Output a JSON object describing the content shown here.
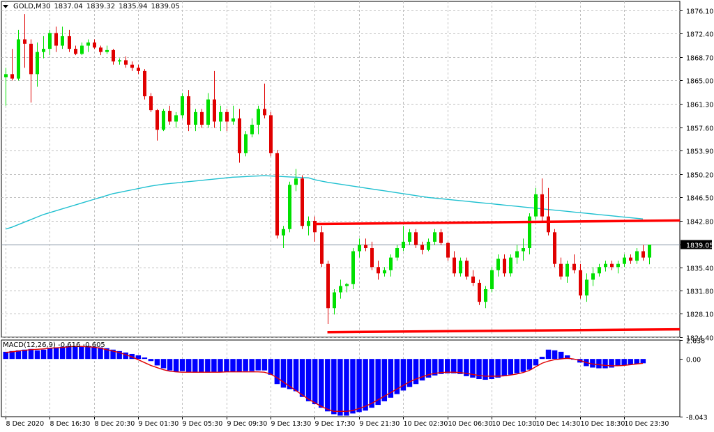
{
  "window": {
    "symbol": "GOLD,M30",
    "ohlc": [
      "1837.04",
      "1839.32",
      "1835.94",
      "1839.05"
    ],
    "current_price_label": "1839.05",
    "macd_label": "MACD(12,26,9)",
    "macd_values": "-0.616 -0.605"
  },
  "colors": {
    "bull": "#00e000",
    "bear": "#e00000",
    "ma": "#20c0d0",
    "trend": "#ff0000",
    "histogram": "#0000ff",
    "signal": "#e00000",
    "grid": "#c0c0c0"
  },
  "chart_data": [
    {
      "type": "candlestick",
      "title": "GOLD,M30",
      "ylim": [
        1824.4,
        1877.5
      ],
      "yticks": [
        "1876.10",
        "1872.40",
        "1868.70",
        "1865.00",
        "1861.30",
        "1857.60",
        "1853.90",
        "1850.20",
        "1846.50",
        "1842.80",
        "1839.05",
        "1835.40",
        "1831.80",
        "1828.10",
        "1824.40"
      ],
      "xticks": [
        "8 Dec 2020",
        "8 Dec 16:30",
        "8 Dec 20:30",
        "9 Dec 01:30",
        "9 Dec 05:30",
        "9 Dec 09:30",
        "9 Dec 13:30",
        "9 Dec 17:30",
        "9 Dec 21:30",
        "10 Dec 02:30",
        "10 Dec 06:30",
        "10 Dec 10:30",
        "10 Dec 14:30",
        "10 Dec 18:30",
        "10 Dec 23:30"
      ],
      "ohlc": [
        [
          1865.5,
          1867.0,
          1861.0,
          1866.0
        ],
        [
          1866.0,
          1870.0,
          1865.0,
          1865.3
        ],
        [
          1865.3,
          1873.0,
          1865.0,
          1871.5
        ],
        [
          1871.5,
          1875.5,
          1867.0,
          1870.8
        ],
        [
          1870.8,
          1871.5,
          1861.5,
          1866.0
        ],
        [
          1866.0,
          1871.0,
          1864.0,
          1869.5
        ],
        [
          1869.5,
          1872.0,
          1868.5,
          1870.0
        ],
        [
          1870.0,
          1873.0,
          1869.0,
          1872.5
        ],
        [
          1872.5,
          1873.5,
          1869.5,
          1870.5
        ],
        [
          1870.5,
          1873.5,
          1870.0,
          1872.0
        ],
        [
          1872.0,
          1873.0,
          1869.5,
          1870.0
        ],
        [
          1870.0,
          1870.5,
          1869.0,
          1869.2
        ],
        [
          1869.2,
          1871.0,
          1869.0,
          1870.5
        ],
        [
          1870.5,
          1871.5,
          1869.5,
          1871.0
        ],
        [
          1871.0,
          1871.5,
          1870.0,
          1870.2
        ],
        [
          1870.2,
          1870.5,
          1869.0,
          1869.5
        ],
        [
          1869.5,
          1870.5,
          1869.2,
          1869.8
        ],
        [
          1869.8,
          1870.0,
          1867.5,
          1868.0
        ],
        [
          1868.0,
          1868.5,
          1867.5,
          1868.2
        ],
        [
          1868.2,
          1868.8,
          1867.0,
          1867.5
        ],
        [
          1867.5,
          1868.0,
          1866.5,
          1867.0
        ],
        [
          1867.0,
          1867.5,
          1866.0,
          1866.5
        ],
        [
          1866.5,
          1866.8,
          1862.0,
          1862.5
        ],
        [
          1862.5,
          1863.0,
          1860.0,
          1860.3
        ],
        [
          1860.3,
          1860.5,
          1855.5,
          1857.2
        ],
        [
          1857.2,
          1860.5,
          1857.0,
          1860.2
        ],
        [
          1860.2,
          1861.0,
          1858.0,
          1858.5
        ],
        [
          1858.5,
          1860.0,
          1857.5,
          1859.5
        ],
        [
          1859.5,
          1863.0,
          1859.0,
          1862.5
        ],
        [
          1862.5,
          1863.5,
          1857.0,
          1858.0
        ],
        [
          1858.0,
          1860.5,
          1857.0,
          1860.0
        ],
        [
          1860.0,
          1860.5,
          1857.5,
          1858.0
        ],
        [
          1858.0,
          1863.0,
          1857.5,
          1862.0
        ],
        [
          1862.0,
          1866.5,
          1857.5,
          1858.5
        ],
        [
          1858.5,
          1861.0,
          1857.0,
          1860.0
        ],
        [
          1860.0,
          1860.5,
          1857.0,
          1858.5
        ],
        [
          1858.5,
          1861.0,
          1858.0,
          1859.0
        ],
        [
          1859.0,
          1860.5,
          1852.0,
          1853.5
        ],
        [
          1853.5,
          1857.0,
          1853.0,
          1856.5
        ],
        [
          1856.5,
          1859.0,
          1856.0,
          1858.0
        ],
        [
          1858.0,
          1861.0,
          1856.5,
          1860.5
        ],
        [
          1860.5,
          1864.5,
          1859.0,
          1859.5
        ],
        [
          1859.5,
          1860.0,
          1853.0,
          1853.5
        ],
        [
          1853.5,
          1854.0,
          1840.0,
          1840.5
        ],
        [
          1840.5,
          1842.0,
          1838.5,
          1841.5
        ],
        [
          1841.5,
          1849.0,
          1841.0,
          1848.5
        ],
        [
          1848.5,
          1851.0,
          1847.5,
          1849.5
        ],
        [
          1849.5,
          1850.0,
          1841.5,
          1842.0
        ],
        [
          1842.0,
          1843.5,
          1840.5,
          1842.8
        ],
        [
          1842.8,
          1843.5,
          1839.5,
          1841.0
        ],
        [
          1841.0,
          1842.0,
          1835.5,
          1836.0
        ],
        [
          1836.0,
          1836.5,
          1826.5,
          1829.0
        ],
        [
          1829.0,
          1832.0,
          1828.0,
          1831.5
        ],
        [
          1831.5,
          1833.5,
          1830.5,
          1832.5
        ],
        [
          1832.5,
          1833.0,
          1831.5,
          1832.8
        ],
        [
          1832.8,
          1838.5,
          1832.0,
          1838.0
        ],
        [
          1838.0,
          1840.0,
          1837.0,
          1839.0
        ],
        [
          1839.0,
          1840.0,
          1838.0,
          1838.5
        ],
        [
          1838.5,
          1839.5,
          1835.0,
          1835.5
        ],
        [
          1835.5,
          1836.5,
          1833.5,
          1834.5
        ],
        [
          1834.5,
          1835.5,
          1834.0,
          1835.0
        ],
        [
          1835.0,
          1837.5,
          1834.0,
          1837.0
        ],
        [
          1837.0,
          1839.0,
          1836.5,
          1838.5
        ],
        [
          1838.5,
          1842.0,
          1838.0,
          1839.5
        ],
        [
          1839.5,
          1841.5,
          1839.0,
          1841.0
        ],
        [
          1841.0,
          1841.5,
          1838.5,
          1839.0
        ],
        [
          1839.0,
          1839.5,
          1837.5,
          1838.2
        ],
        [
          1838.2,
          1840.0,
          1838.0,
          1839.5
        ],
        [
          1839.5,
          1841.5,
          1839.0,
          1841.0
        ],
        [
          1841.0,
          1841.5,
          1839.0,
          1839.3
        ],
        [
          1839.3,
          1839.5,
          1836.5,
          1837.0
        ],
        [
          1837.0,
          1838.0,
          1834.0,
          1834.5
        ],
        [
          1834.5,
          1837.0,
          1834.0,
          1836.5
        ],
        [
          1836.5,
          1837.0,
          1833.5,
          1834.0
        ],
        [
          1834.0,
          1835.0,
          1832.5,
          1833.0
        ],
        [
          1833.0,
          1833.5,
          1829.5,
          1830.0
        ],
        [
          1830.0,
          1832.5,
          1829.0,
          1832.0
        ],
        [
          1832.0,
          1835.5,
          1831.5,
          1835.0
        ],
        [
          1835.0,
          1837.5,
          1834.0,
          1836.8
        ],
        [
          1836.8,
          1837.5,
          1834.0,
          1834.5
        ],
        [
          1834.5,
          1837.5,
          1834.0,
          1837.0
        ],
        [
          1837.0,
          1839.0,
          1836.0,
          1838.0
        ],
        [
          1838.0,
          1840.0,
          1836.5,
          1838.5
        ],
        [
          1838.5,
          1844.0,
          1837.5,
          1843.5
        ],
        [
          1843.5,
          1848.0,
          1843.0,
          1847.0
        ],
        [
          1847.0,
          1849.5,
          1842.5,
          1843.5
        ],
        [
          1843.5,
          1848.0,
          1840.5,
          1841.0
        ],
        [
          1841.0,
          1841.5,
          1835.5,
          1836.0
        ],
        [
          1836.0,
          1837.0,
          1833.5,
          1834.0
        ],
        [
          1834.0,
          1836.5,
          1833.0,
          1836.0
        ],
        [
          1836.0,
          1837.5,
          1834.5,
          1835.0
        ],
        [
          1835.0,
          1836.0,
          1830.5,
          1831.0
        ],
        [
          1831.0,
          1834.5,
          1830.0,
          1833.5
        ],
        [
          1833.5,
          1835.5,
          1832.5,
          1834.5
        ],
        [
          1834.5,
          1836.0,
          1834.0,
          1835.5
        ],
        [
          1835.5,
          1836.5,
          1834.8,
          1836.0
        ],
        [
          1836.0,
          1836.5,
          1835.0,
          1835.5
        ],
        [
          1835.5,
          1836.5,
          1834.5,
          1836.0
        ],
        [
          1836.0,
          1837.5,
          1835.5,
          1837.0
        ],
        [
          1837.0,
          1837.5,
          1836.0,
          1836.5
        ],
        [
          1836.5,
          1838.5,
          1836.0,
          1838.0
        ],
        [
          1838.0,
          1839.0,
          1836.5,
          1837.0
        ],
        [
          1837.0,
          1839.05,
          1835.94,
          1839.05
        ]
      ],
      "moving_average": [
        1841.5,
        1841.8,
        1842.2,
        1842.6,
        1843.0,
        1843.4,
        1843.8,
        1844.1,
        1844.4,
        1844.7,
        1845.0,
        1845.3,
        1845.6,
        1845.9,
        1846.2,
        1846.5,
        1846.8,
        1847.1,
        1847.3,
        1847.5,
        1847.7,
        1847.9,
        1848.1,
        1848.3,
        1848.45,
        1848.6,
        1848.7,
        1848.8,
        1848.9,
        1849.0,
        1849.1,
        1849.2,
        1849.3,
        1849.4,
        1849.5,
        1849.6,
        1849.7,
        1849.75,
        1849.8,
        1849.85,
        1849.9,
        1849.95,
        1849.9,
        1849.85,
        1849.8,
        1849.75,
        1849.7,
        1849.65,
        1849.6,
        1849.3,
        1849.1,
        1848.9,
        1848.75,
        1848.6,
        1848.45,
        1848.3,
        1848.15,
        1848.0,
        1847.85,
        1847.7,
        1847.55,
        1847.4,
        1847.25,
        1847.1,
        1846.95,
        1846.8,
        1846.65,
        1846.5,
        1846.4,
        1846.3,
        1846.2,
        1846.1,
        1846.0,
        1845.9,
        1845.8,
        1845.7,
        1845.6,
        1845.5,
        1845.4,
        1845.3,
        1845.2,
        1845.1,
        1845.0,
        1844.9,
        1844.8,
        1844.7,
        1844.6,
        1844.5,
        1844.4,
        1844.3,
        1844.2,
        1844.1,
        1844.0,
        1843.9,
        1843.8,
        1843.7,
        1843.6,
        1843.5,
        1843.4,
        1843.3,
        1843.2,
        1843.1
      ],
      "trend_lines": [
        {
          "from": [
            49,
            1842.3
          ],
          "to": [
            999,
            1851.5
          ]
        },
        {
          "from": [
            51,
            1825.2
          ],
          "to": [
            999,
            1833.0
          ]
        }
      ]
    },
    {
      "type": "bar",
      "title": "MACD(12,26,9)",
      "ylim": [
        -8.043,
        2.638
      ],
      "yticks": [
        "2.638",
        "0.00",
        "-8.043"
      ],
      "histogram": [
        1.0,
        1.1,
        1.2,
        1.3,
        1.4,
        1.2,
        1.3,
        1.5,
        1.6,
        1.7,
        1.8,
        1.8,
        1.8,
        1.8,
        1.7,
        1.6,
        1.5,
        1.3,
        1.1,
        0.9,
        0.7,
        0.5,
        0.2,
        -0.3,
        -0.9,
        -1.3,
        -1.6,
        -1.8,
        -1.7,
        -1.8,
        -1.9,
        -1.9,
        -1.9,
        -1.8,
        -1.8,
        -1.8,
        -1.8,
        -1.8,
        -1.7,
        -1.7,
        -1.6,
        -1.6,
        -2.2,
        -3.5,
        -4.0,
        -4.2,
        -4.5,
        -5.3,
        -5.9,
        -6.3,
        -6.8,
        -7.3,
        -7.7,
        -7.9,
        -7.9,
        -7.6,
        -7.4,
        -7.2,
        -6.8,
        -6.4,
        -5.9,
        -5.4,
        -4.9,
        -4.4,
        -3.9,
        -3.5,
        -3.0,
        -2.6,
        -2.3,
        -2.1,
        -2.0,
        -2.0,
        -2.1,
        -2.4,
        -2.6,
        -2.8,
        -2.9,
        -2.8,
        -2.6,
        -2.4,
        -2.2,
        -2.0,
        -1.8,
        -1.5,
        -0.9,
        0.3,
        1.3,
        1.2,
        1.0,
        0.5,
        0.0,
        -0.5,
        -1.0,
        -1.2,
        -1.3,
        -1.3,
        -1.2,
        -1.0,
        -0.9,
        -0.8,
        -0.7,
        -0.6
      ],
      "signal": [
        0.9,
        1.0,
        1.1,
        1.2,
        1.3,
        1.35,
        1.4,
        1.5,
        1.55,
        1.6,
        1.7,
        1.75,
        1.75,
        1.7,
        1.65,
        1.5,
        1.3,
        1.1,
        0.9,
        0.6,
        0.3,
        -0.1,
        -0.5,
        -0.9,
        -1.2,
        -1.5,
        -1.7,
        -1.8,
        -1.85,
        -1.85,
        -1.85,
        -1.85,
        -1.85,
        -1.85,
        -1.85,
        -1.8,
        -1.8,
        -1.8,
        -1.8,
        -1.8,
        -1.8,
        -1.85,
        -2.1,
        -2.6,
        -3.2,
        -3.8,
        -4.4,
        -5.0,
        -5.6,
        -6.1,
        -6.6,
        -7.0,
        -7.3,
        -7.3,
        -7.3,
        -7.2,
        -6.9,
        -6.6,
        -6.2,
        -5.7,
        -5.2,
        -4.7,
        -4.2,
        -3.7,
        -3.2,
        -2.8,
        -2.5,
        -2.2,
        -2.0,
        -1.9,
        -1.85,
        -1.85,
        -1.9,
        -2.0,
        -2.15,
        -2.3,
        -2.4,
        -2.4,
        -2.4,
        -2.35,
        -2.25,
        -2.1,
        -1.9,
        -1.6,
        -1.1,
        -0.6,
        -0.3,
        -0.1,
        0.0,
        0.1,
        0.0,
        -0.2,
        -0.5,
        -0.7,
        -0.8,
        -0.9,
        -0.95,
        -0.95,
        -0.9,
        -0.8,
        -0.7,
        -0.605
      ]
    }
  ]
}
